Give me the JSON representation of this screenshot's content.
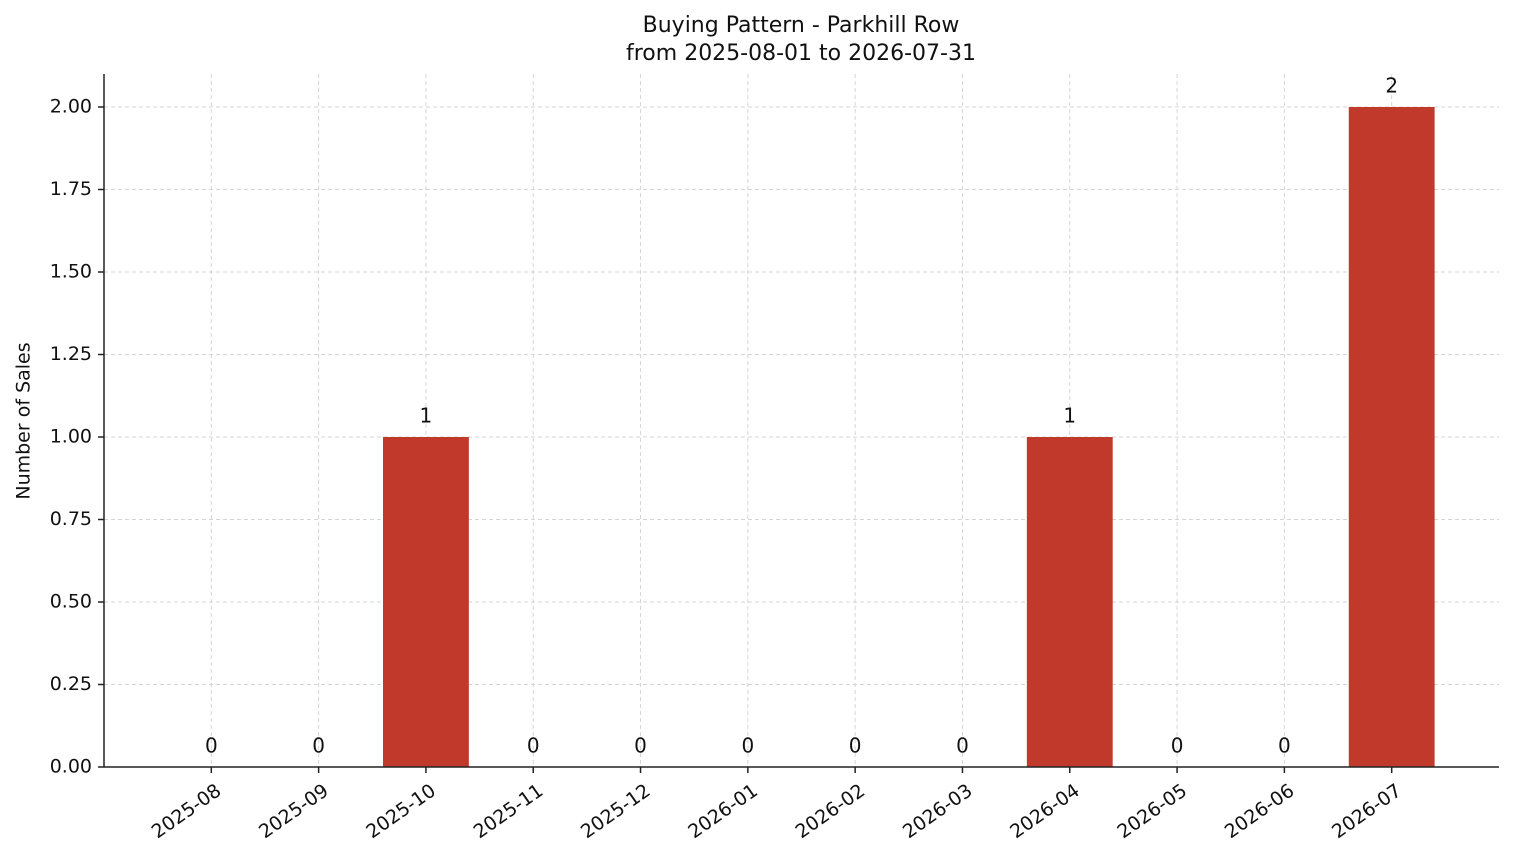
{
  "chart_data": {
    "type": "bar",
    "title": "Buying Pattern - Parkhill Row",
    "subtitle": "from 2025-08-01 to 2026-07-31",
    "y_label": "Number of Sales",
    "categories": [
      "2025-08",
      "2025-09",
      "2025-10",
      "2025-11",
      "2025-12",
      "2026-01",
      "2026-02",
      "2026-03",
      "2026-04",
      "2026-05",
      "2026-06",
      "2026-07"
    ],
    "values": [
      0,
      0,
      1,
      0,
      0,
      0,
      0,
      0,
      1,
      0,
      0,
      2
    ],
    "color": "#c0392b",
    "ylim": [
      0,
      2.1
    ],
    "yticks": [
      {
        "value": 0,
        "label": "0.00"
      },
      {
        "value": 0.25,
        "label": "0.25"
      },
      {
        "value": 0.5,
        "label": "0.50"
      },
      {
        "value": 0.75,
        "label": "0.75"
      },
      {
        "value": 1,
        "label": "1.00"
      },
      {
        "value": 1.25,
        "label": "1.25"
      },
      {
        "value": 1.5,
        "label": "1.50"
      },
      {
        "value": 1.75,
        "label": "1.75"
      },
      {
        "value": 2,
        "label": "2.00"
      }
    ],
    "grid": true
  }
}
